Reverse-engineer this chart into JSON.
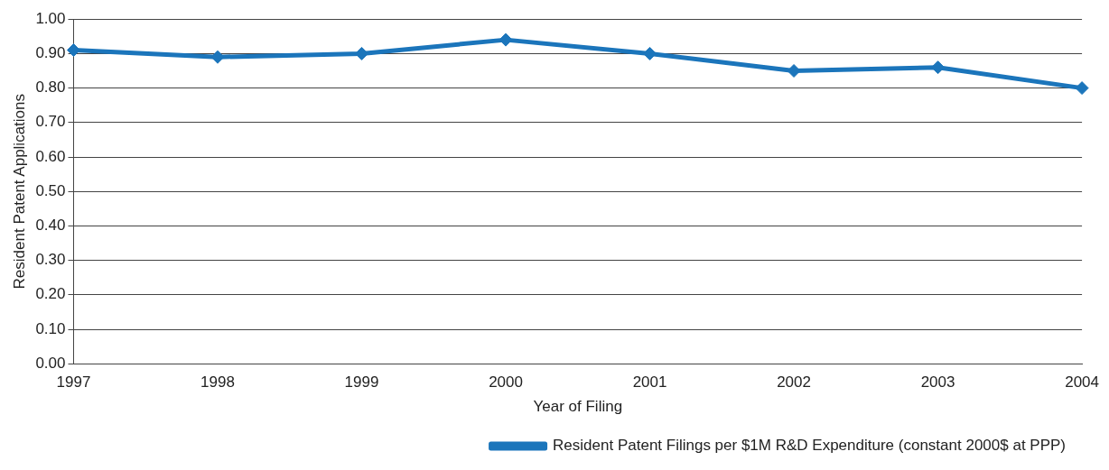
{
  "chart_data": {
    "type": "line",
    "xlabel": "Year of Filing",
    "ylabel": "Resident Patent Applications",
    "categories": [
      "1997",
      "1998",
      "1999",
      "2000",
      "2001",
      "2002",
      "2003",
      "2004"
    ],
    "series": [
      {
        "name": "Resident Patent Filings per $1M R&D Expenditure (constant 2000$ at PPP)",
        "color": "#1b75bb",
        "values": [
          0.91,
          0.89,
          0.9,
          0.94,
          0.9,
          0.85,
          0.86,
          0.8
        ]
      }
    ],
    "ylim": [
      0,
      1
    ],
    "yticks": [
      {
        "value": 0,
        "label": "0.00"
      },
      {
        "value": 0.1,
        "label": "0.10"
      },
      {
        "value": 0.2,
        "label": "0.20"
      },
      {
        "value": 0.3,
        "label": "0.30"
      },
      {
        "value": 0.4,
        "label": "0.40"
      },
      {
        "value": 0.5,
        "label": "0.50"
      },
      {
        "value": 0.6,
        "label": "0.60"
      },
      {
        "value": 0.7,
        "label": "0.70"
      },
      {
        "value": 0.8,
        "label": "0.80"
      },
      {
        "value": 0.9,
        "label": "0.90"
      },
      {
        "value": 1,
        "label": "1.00"
      }
    ],
    "grid": "y",
    "legend": "bottom right",
    "marker": "diamond",
    "line_style": "solid"
  }
}
